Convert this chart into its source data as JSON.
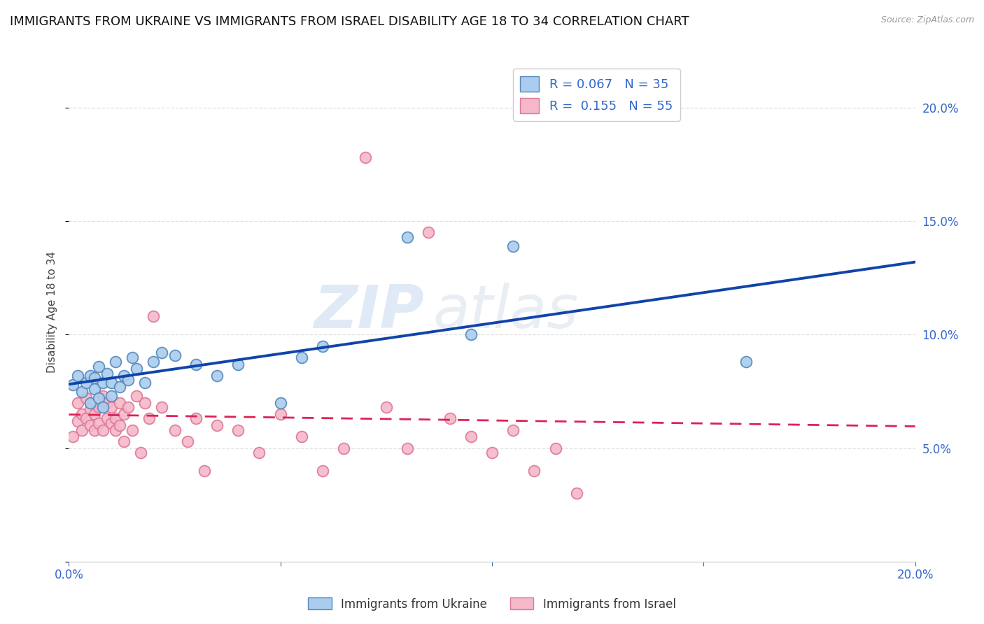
{
  "title": "IMMIGRANTS FROM UKRAINE VS IMMIGRANTS FROM ISRAEL DISABILITY AGE 18 TO 34 CORRELATION CHART",
  "source": "Source: ZipAtlas.com",
  "ylabel": "Disability Age 18 to 34",
  "xlim": [
    0.0,
    0.2
  ],
  "ylim": [
    0.0,
    0.22
  ],
  "xticks": [
    0.0,
    0.05,
    0.1,
    0.15,
    0.2
  ],
  "yticks": [
    0.0,
    0.05,
    0.1,
    0.15,
    0.2
  ],
  "xticklabels": [
    "0.0%",
    "",
    "",
    "",
    "20.0%"
  ],
  "yticklabels_right": [
    "",
    "5.0%",
    "10.0%",
    "15.0%",
    "20.0%"
  ],
  "background_color": "#ffffff",
  "grid_color": "#e0e0e0",
  "ukraine_color": "#aaccee",
  "ukraine_edge_color": "#5588bb",
  "israel_color": "#f5b8c8",
  "israel_edge_color": "#dd7799",
  "ukraine_line_color": "#1144aa",
  "israel_line_color": "#dd2255",
  "legend_R_ukraine": "0.067",
  "legend_N_ukraine": "35",
  "legend_R_israel": "0.155",
  "legend_N_israel": "55",
  "ukraine_x": [
    0.001,
    0.002,
    0.003,
    0.004,
    0.005,
    0.005,
    0.006,
    0.006,
    0.007,
    0.007,
    0.008,
    0.008,
    0.009,
    0.01,
    0.01,
    0.011,
    0.012,
    0.013,
    0.014,
    0.015,
    0.016,
    0.018,
    0.02,
    0.022,
    0.025,
    0.03,
    0.035,
    0.04,
    0.05,
    0.055,
    0.06,
    0.08,
    0.095,
    0.105,
    0.16
  ],
  "ukraine_y": [
    0.078,
    0.082,
    0.075,
    0.079,
    0.082,
    0.07,
    0.081,
    0.076,
    0.086,
    0.072,
    0.079,
    0.068,
    0.083,
    0.079,
    0.073,
    0.088,
    0.077,
    0.082,
    0.08,
    0.09,
    0.085,
    0.079,
    0.088,
    0.092,
    0.091,
    0.087,
    0.082,
    0.087,
    0.07,
    0.09,
    0.095,
    0.143,
    0.1,
    0.139,
    0.088
  ],
  "israel_x": [
    0.001,
    0.002,
    0.002,
    0.003,
    0.003,
    0.004,
    0.004,
    0.005,
    0.005,
    0.006,
    0.006,
    0.007,
    0.007,
    0.008,
    0.008,
    0.009,
    0.009,
    0.01,
    0.01,
    0.011,
    0.011,
    0.012,
    0.012,
    0.013,
    0.013,
    0.014,
    0.015,
    0.016,
    0.017,
    0.018,
    0.019,
    0.02,
    0.022,
    0.025,
    0.028,
    0.03,
    0.032,
    0.035,
    0.04,
    0.045,
    0.05,
    0.055,
    0.06,
    0.065,
    0.07,
    0.075,
    0.08,
    0.085,
    0.09,
    0.095,
    0.1,
    0.105,
    0.11,
    0.115,
    0.12
  ],
  "israel_y": [
    0.055,
    0.062,
    0.07,
    0.058,
    0.065,
    0.063,
    0.072,
    0.06,
    0.067,
    0.058,
    0.065,
    0.061,
    0.068,
    0.058,
    0.073,
    0.063,
    0.07,
    0.061,
    0.068,
    0.063,
    0.058,
    0.07,
    0.06,
    0.065,
    0.053,
    0.068,
    0.058,
    0.073,
    0.048,
    0.07,
    0.063,
    0.108,
    0.068,
    0.058,
    0.053,
    0.063,
    0.04,
    0.06,
    0.058,
    0.048,
    0.065,
    0.055,
    0.04,
    0.05,
    0.178,
    0.068,
    0.05,
    0.145,
    0.063,
    0.055,
    0.048,
    0.058,
    0.04,
    0.05,
    0.03
  ],
  "watermark_line1": "ZIP",
  "watermark_line2": "atlas",
  "marker_size": 130,
  "title_fontsize": 13,
  "axis_label_fontsize": 11,
  "tick_fontsize": 12,
  "legend_fontsize": 13,
  "tick_color": "#3366cc",
  "bottom_legend_label_ukraine": "Immigrants from Ukraine",
  "bottom_legend_label_israel": "Immigrants from Israel"
}
